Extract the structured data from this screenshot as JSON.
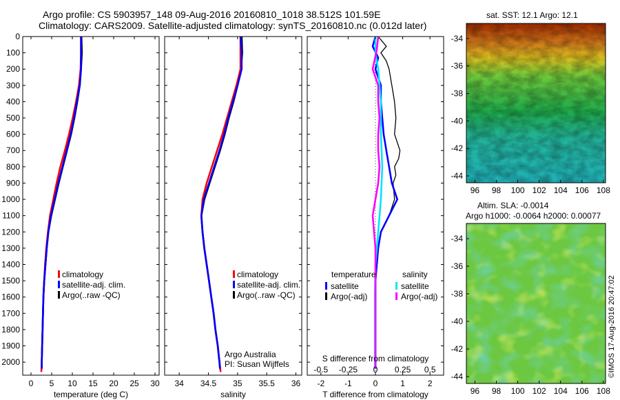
{
  "title_line1": "Argo profile: CS 5903957_148 09-Aug-2016 20160810_1018 38.512S 101.59E",
  "title_line2": "Climatology: CARS2009. Satellite-adjusted climatology: synTS_20160810.nc (0.012d later)",
  "credit": "©IMOS 17-Aug-2016 20:47:02",
  "footer_note": [
    "Argo Australia",
    "PI: Susan Wijffels"
  ],
  "colors": {
    "climatology": "#ff0000",
    "satellite": "#0000ff",
    "argo": "#000000",
    "satellite_sal": "#00e5ff",
    "argo_sal": "#ff00ff"
  },
  "chart_data": [
    {
      "type": "line",
      "name": "temperature",
      "xlabel": "temperature (deg C)",
      "ylabel": "",
      "xlim": [
        -2,
        31
      ],
      "ylim": [
        2080,
        0
      ],
      "xticks": [
        0,
        5,
        10,
        15,
        20,
        25,
        30
      ],
      "yticks": [
        0,
        100,
        200,
        300,
        400,
        500,
        600,
        700,
        800,
        900,
        1000,
        1100,
        1200,
        1300,
        1400,
        1500,
        1600,
        1700,
        1800,
        1900,
        2000
      ],
      "legend": [
        "climatology",
        "satellite-adj. clim.",
        "Argo(..raw -QC)"
      ],
      "series": [
        {
          "name": "climatology",
          "points": [
            [
              12.1,
              0
            ],
            [
              12.1,
              100
            ],
            [
              12.0,
              200
            ],
            [
              11.6,
              300
            ],
            [
              10.9,
              400
            ],
            [
              10.1,
              500
            ],
            [
              9.2,
              600
            ],
            [
              8.2,
              700
            ],
            [
              7.1,
              800
            ],
            [
              6.2,
              900
            ],
            [
              5.4,
              1000
            ],
            [
              4.6,
              1100
            ],
            [
              4.1,
              1200
            ],
            [
              3.7,
              1300
            ],
            [
              3.4,
              1400
            ],
            [
              3.2,
              1500
            ],
            [
              3.0,
              1600
            ],
            [
              2.9,
              1700
            ],
            [
              2.8,
              1800
            ],
            [
              2.7,
              1900
            ],
            [
              2.6,
              2000
            ],
            [
              2.5,
              2060
            ]
          ]
        },
        {
          "name": "satellite-adj. clim.",
          "points": [
            [
              12.1,
              0
            ],
            [
              12.1,
              100
            ],
            [
              12.1,
              200
            ],
            [
              11.8,
              300
            ],
            [
              11.1,
              400
            ],
            [
              10.4,
              500
            ],
            [
              9.6,
              600
            ],
            [
              8.6,
              700
            ],
            [
              7.6,
              800
            ],
            [
              6.6,
              900
            ],
            [
              5.7,
              1000
            ],
            [
              4.8,
              1100
            ],
            [
              4.2,
              1200
            ],
            [
              3.8,
              1300
            ],
            [
              3.5,
              1400
            ],
            [
              3.2,
              1500
            ],
            [
              3.0,
              1600
            ],
            [
              2.9,
              1700
            ],
            [
              2.8,
              1800
            ],
            [
              2.7,
              1900
            ],
            [
              2.6,
              2000
            ],
            [
              2.6,
              2040
            ]
          ]
        },
        {
          "name": "Argo(..raw -QC)",
          "points": [
            [
              12.2,
              0
            ],
            [
              12.3,
              100
            ],
            [
              12.1,
              200
            ],
            [
              11.8,
              300
            ],
            [
              11.2,
              400
            ],
            [
              10.5,
              500
            ],
            [
              9.7,
              600
            ],
            [
              8.7,
              700
            ],
            [
              7.7,
              800
            ],
            [
              6.7,
              900
            ],
            [
              5.8,
              1000
            ],
            [
              4.9,
              1100
            ],
            [
              4.2,
              1200
            ],
            [
              3.8,
              1300
            ],
            [
              3.5,
              1400
            ],
            [
              3.2,
              1500
            ],
            [
              3.0,
              1600
            ],
            [
              2.9,
              1700
            ],
            [
              2.8,
              1800
            ],
            [
              2.7,
              1900
            ],
            [
              2.6,
              2000
            ],
            [
              2.6,
              2040
            ]
          ]
        }
      ]
    },
    {
      "type": "line",
      "name": "salinity",
      "xlabel": "salinity",
      "ylabel": "",
      "xlim": [
        33.75,
        36.1
      ],
      "ylim": [
        2080,
        0
      ],
      "xticks": [
        34,
        34.5,
        35,
        35.5,
        36
      ],
      "legend": [
        "climatology",
        "satellite-adj. clim.",
        "Argo(..raw -QC)"
      ],
      "series": [
        {
          "name": "climatology",
          "points": [
            [
              35.05,
              0
            ],
            [
              35.05,
              100
            ],
            [
              35.05,
              200
            ],
            [
              34.98,
              300
            ],
            [
              34.9,
              400
            ],
            [
              34.82,
              500
            ],
            [
              34.74,
              600
            ],
            [
              34.65,
              700
            ],
            [
              34.56,
              800
            ],
            [
              34.47,
              900
            ],
            [
              34.4,
              1000
            ],
            [
              34.38,
              1100
            ],
            [
              34.4,
              1200
            ],
            [
              34.43,
              1300
            ],
            [
              34.47,
              1400
            ],
            [
              34.51,
              1500
            ],
            [
              34.55,
              1600
            ],
            [
              34.59,
              1700
            ],
            [
              34.62,
              1800
            ],
            [
              34.66,
              1900
            ],
            [
              34.69,
              2000
            ],
            [
              34.71,
              2060
            ]
          ]
        },
        {
          "name": "satellite-adj. clim.",
          "points": [
            [
              35.05,
              0
            ],
            [
              35.07,
              100
            ],
            [
              35.07,
              200
            ],
            [
              35.0,
              300
            ],
            [
              34.92,
              400
            ],
            [
              34.84,
              500
            ],
            [
              34.77,
              600
            ],
            [
              34.69,
              700
            ],
            [
              34.6,
              800
            ],
            [
              34.51,
              900
            ],
            [
              34.42,
              1000
            ],
            [
              34.38,
              1100
            ],
            [
              34.4,
              1200
            ],
            [
              34.43,
              1300
            ],
            [
              34.47,
              1400
            ],
            [
              34.51,
              1500
            ],
            [
              34.55,
              1600
            ],
            [
              34.59,
              1700
            ],
            [
              34.62,
              1800
            ],
            [
              34.66,
              1900
            ],
            [
              34.69,
              2000
            ],
            [
              34.7,
              2040
            ]
          ]
        },
        {
          "name": "Argo(..raw -QC)",
          "points": [
            [
              35.07,
              0
            ],
            [
              35.08,
              100
            ],
            [
              35.06,
              200
            ],
            [
              35.0,
              300
            ],
            [
              34.93,
              400
            ],
            [
              34.85,
              500
            ],
            [
              34.78,
              600
            ],
            [
              34.7,
              700
            ],
            [
              34.61,
              800
            ],
            [
              34.52,
              900
            ],
            [
              34.43,
              1000
            ],
            [
              34.38,
              1100
            ],
            [
              34.4,
              1200
            ],
            [
              34.43,
              1300
            ],
            [
              34.47,
              1400
            ],
            [
              34.51,
              1500
            ],
            [
              34.55,
              1600
            ],
            [
              34.59,
              1700
            ],
            [
              34.62,
              1800
            ],
            [
              34.66,
              1900
            ],
            [
              34.69,
              2000
            ],
            [
              34.7,
              2040
            ]
          ]
        }
      ]
    },
    {
      "type": "line",
      "name": "differences",
      "xlabel": "T difference from climatology",
      "xlabel2": "S difference from climatology",
      "ylabel": "",
      "xlim": [
        -2.5,
        2.5
      ],
      "ylim": [
        2080,
        0
      ],
      "xticks": [
        -2,
        -1,
        0,
        1,
        2
      ],
      "xticks2": [
        "-0.5",
        "-0.25",
        "0",
        "0.25",
        "0.5"
      ],
      "xticks2_pos": [
        -2,
        -1,
        0,
        1,
        2
      ],
      "legend_headers": [
        "temperature",
        "salinity"
      ],
      "legend": [
        "satellite",
        "Argo(-adj)",
        "satellite",
        "Argo(-adj)"
      ],
      "series": [
        {
          "name": "satellite",
          "points": [
            [
              0.0,
              0
            ],
            [
              -0.1,
              60
            ],
            [
              0.1,
              130
            ],
            [
              0.0,
              200
            ],
            [
              0.2,
              300
            ],
            [
              0.2,
              400
            ],
            [
              0.25,
              500
            ],
            [
              0.3,
              600
            ],
            [
              0.4,
              700
            ],
            [
              0.5,
              800
            ],
            [
              0.6,
              900
            ],
            [
              0.8,
              1000
            ],
            [
              0.5,
              1100
            ],
            [
              0.2,
              1200
            ],
            [
              0.1,
              1300
            ],
            [
              0.05,
              1400
            ],
            [
              0.0,
              1500
            ],
            [
              0.0,
              1700
            ],
            [
              0.0,
              1900
            ],
            [
              0.0,
              2040
            ]
          ]
        },
        {
          "name": "Argo(-adj)",
          "points": [
            [
              0.1,
              0
            ],
            [
              0.4,
              60
            ],
            [
              0.2,
              100
            ],
            [
              0.4,
              150
            ],
            [
              0.5,
              200
            ],
            [
              0.6,
              300
            ],
            [
              0.7,
              400
            ],
            [
              0.75,
              500
            ],
            [
              0.7,
              600
            ],
            [
              0.9,
              700
            ],
            [
              0.85,
              750
            ],
            [
              0.7,
              800
            ],
            [
              0.75,
              850
            ],
            [
              0.65,
              900
            ],
            [
              0.7,
              1000
            ],
            [
              0.5,
              1100
            ],
            [
              0.2,
              1200
            ],
            [
              0.1,
              1300
            ],
            [
              0.0,
              1500
            ],
            [
              0.0,
              1700
            ],
            [
              0.0,
              2040
            ]
          ]
        },
        {
          "name": "satellite",
          "points": [
            [
              0.0,
              0
            ],
            [
              0.0,
              100
            ],
            [
              0.1,
              200
            ],
            [
              0.2,
              400
            ],
            [
              0.2,
              600
            ],
            [
              0.25,
              800
            ],
            [
              0.2,
              1000
            ],
            [
              0.1,
              1200
            ],
            [
              0.0,
              1400
            ],
            [
              -0.02,
              1600
            ],
            [
              -0.02,
              1800
            ],
            [
              -0.02,
              2040
            ]
          ]
        },
        {
          "name": "Argo(-adj)",
          "points": [
            [
              0.1,
              0
            ],
            [
              0.05,
              80
            ],
            [
              -0.1,
              200
            ],
            [
              0.1,
              300
            ],
            [
              0.1,
              400
            ],
            [
              0.15,
              500
            ],
            [
              0.1,
              600
            ],
            [
              0.1,
              700
            ],
            [
              0.15,
              800
            ],
            [
              0.1,
              900
            ],
            [
              0.0,
              1000
            ],
            [
              -0.1,
              1100
            ],
            [
              -0.05,
              1200
            ],
            [
              0.0,
              1300
            ],
            [
              0.0,
              1500
            ],
            [
              0.0,
              1800
            ],
            [
              0.0,
              2040
            ]
          ]
        }
      ]
    },
    {
      "type": "heatmap",
      "name": "sst_map",
      "title": "sat. SST: 12.1  Argo: 12.1",
      "xticks": [
        96,
        98,
        100,
        102,
        104,
        106,
        108
      ],
      "yticks": [
        -34,
        -36,
        -38,
        -40,
        -42,
        -44
      ],
      "xlim": [
        95.2,
        108.2
      ],
      "ylim": [
        -44.5,
        -32.9
      ]
    },
    {
      "type": "heatmap",
      "name": "sla_map",
      "title_line1": "Altim. SLA: -0.0014",
      "title_line2": "Argo h1000: -0.0064 h2000: 0.00077",
      "xticks": [
        96,
        98,
        100,
        102,
        104,
        106,
        108
      ],
      "yticks": [
        -34,
        -36,
        -38,
        -40,
        -42,
        -44
      ],
      "xlim": [
        95.2,
        108.2
      ],
      "ylim": [
        -44.5,
        -32.9
      ]
    }
  ]
}
